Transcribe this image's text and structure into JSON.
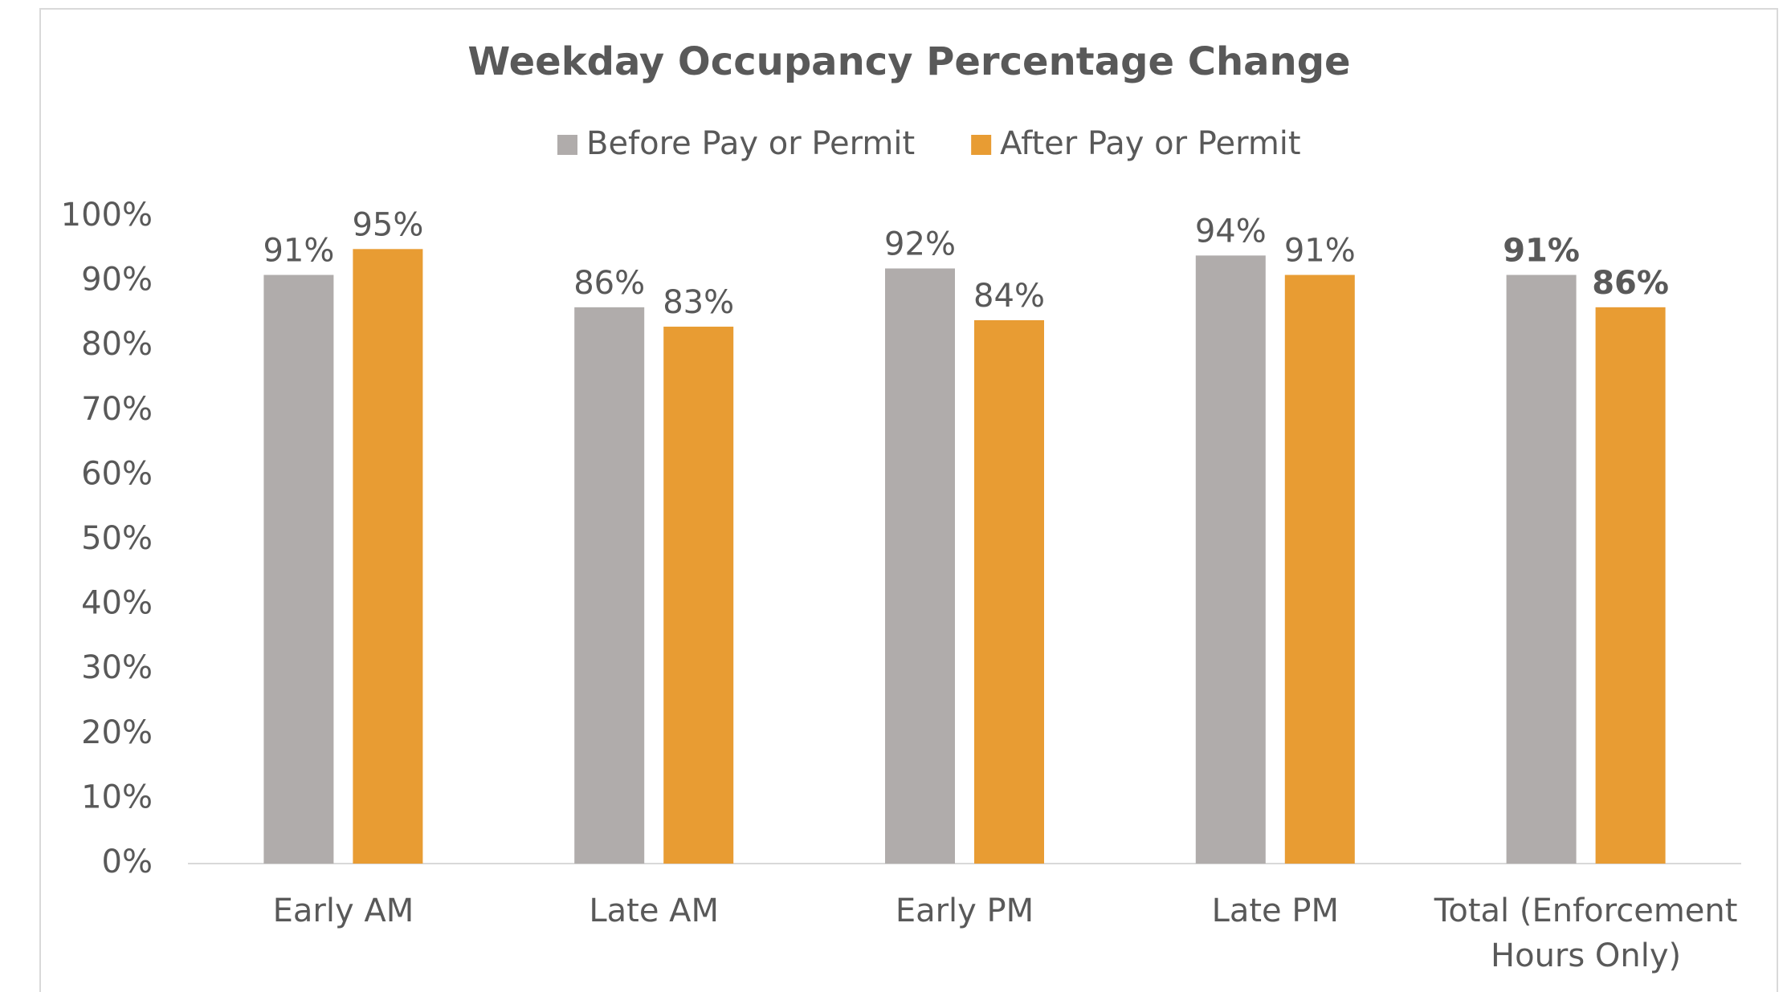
{
  "chart_data": {
    "type": "bar",
    "title": "Weekday Occupancy Percentage Change",
    "categories": [
      "Early AM",
      "Late AM",
      "Early PM",
      "Late PM",
      "Total (Enforcement Hours Only)"
    ],
    "series": [
      {
        "name": "Before Pay or Permit",
        "color": "#b0acab",
        "values": [
          91,
          86,
          92,
          94,
          91
        ],
        "value_labels": [
          "91%",
          "86%",
          "92%",
          "94%",
          "91%"
        ]
      },
      {
        "name": "After Pay or Permit",
        "color": "#e89c33",
        "values": [
          95,
          83,
          84,
          91,
          86
        ],
        "value_labels": [
          "95%",
          "83%",
          "84%",
          "91%",
          "86%"
        ]
      }
    ],
    "ylim": [
      0,
      100
    ],
    "yticks": [
      {
        "value": 0,
        "label": "0%"
      },
      {
        "value": 10,
        "label": "10%"
      },
      {
        "value": 20,
        "label": "20%"
      },
      {
        "value": 30,
        "label": "30%"
      },
      {
        "value": 40,
        "label": "40%"
      },
      {
        "value": 50,
        "label": "50%"
      },
      {
        "value": 60,
        "label": "60%"
      },
      {
        "value": 70,
        "label": "70%"
      },
      {
        "value": 80,
        "label": "80%"
      },
      {
        "value": 90,
        "label": "90%"
      },
      {
        "value": 100,
        "label": "100%"
      }
    ],
    "grid": false,
    "legend": "top"
  }
}
